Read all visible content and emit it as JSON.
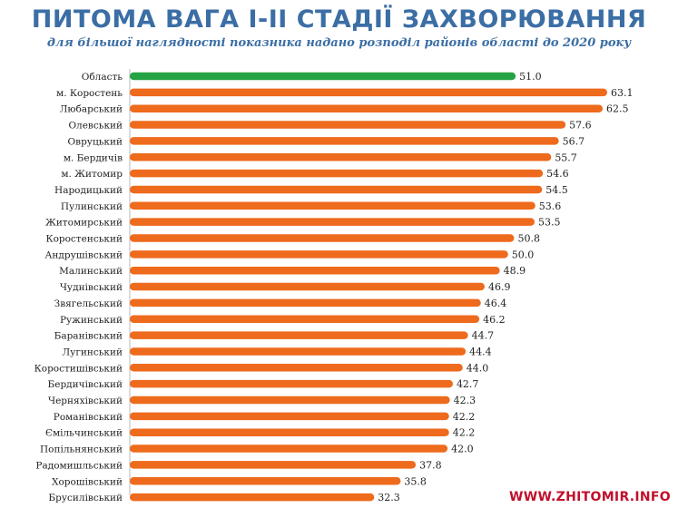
{
  "chart_data": {
    "type": "bar",
    "orientation": "horizontal",
    "title": "ПИТОМА ВАГА І-ІІ СТАДІЇ ЗАХВОРЮВАННЯ",
    "subtitle": "для більшої наглядності показника  надано розподіл районів області до 2020 року",
    "categories": [
      "Область",
      "м. Коростень",
      "Любарський",
      "Олевський",
      "Овруцький",
      "м. Бердичів",
      "м. Житомир",
      "Народицький",
      "Пулинський",
      "Житомирський",
      "Коростенський",
      "Андрушівський",
      "Малинський",
      "Чуднівський",
      "Звягельський",
      "Ружинський",
      "Баранівський",
      "Лугинський",
      "Коростишівський",
      "Бердичівський",
      "Черняхівський",
      "Романівський",
      "Ємільчинський",
      "Попільнянський",
      "Радомишльський",
      "Хорошівський",
      "Брусилівський"
    ],
    "values": [
      51.0,
      63.1,
      62.5,
      57.6,
      56.7,
      55.7,
      54.6,
      54.5,
      53.6,
      53.5,
      50.8,
      50.0,
      48.9,
      46.9,
      46.4,
      46.2,
      44.7,
      44.4,
      44.0,
      42.7,
      42.3,
      42.2,
      42.2,
      42.0,
      37.8,
      35.8,
      32.3
    ],
    "value_labels": [
      "51.0",
      "63.1",
      "62.5",
      "57.6",
      "56.7",
      "55.7",
      "54.6",
      "54.5",
      "53.6",
      "53.5",
      "50.8",
      "50.0",
      "48.9",
      "46.9",
      "46.4",
      "46.2",
      "44.7",
      "44.4",
      "44.0",
      "42.7",
      "42.3",
      "42.2",
      "42.2",
      "42.0",
      "37.8",
      "35.8",
      "32.3"
    ],
    "highlight_index": 0,
    "colors": {
      "highlight": "#25a244",
      "bar": "#ee6a1c",
      "text": "#222222",
      "title": "#3b6ea5"
    },
    "xlim": [
      0,
      70
    ],
    "grid": false,
    "legend": "none"
  },
  "watermark": "WWW.ZHITOMIR.INFO"
}
